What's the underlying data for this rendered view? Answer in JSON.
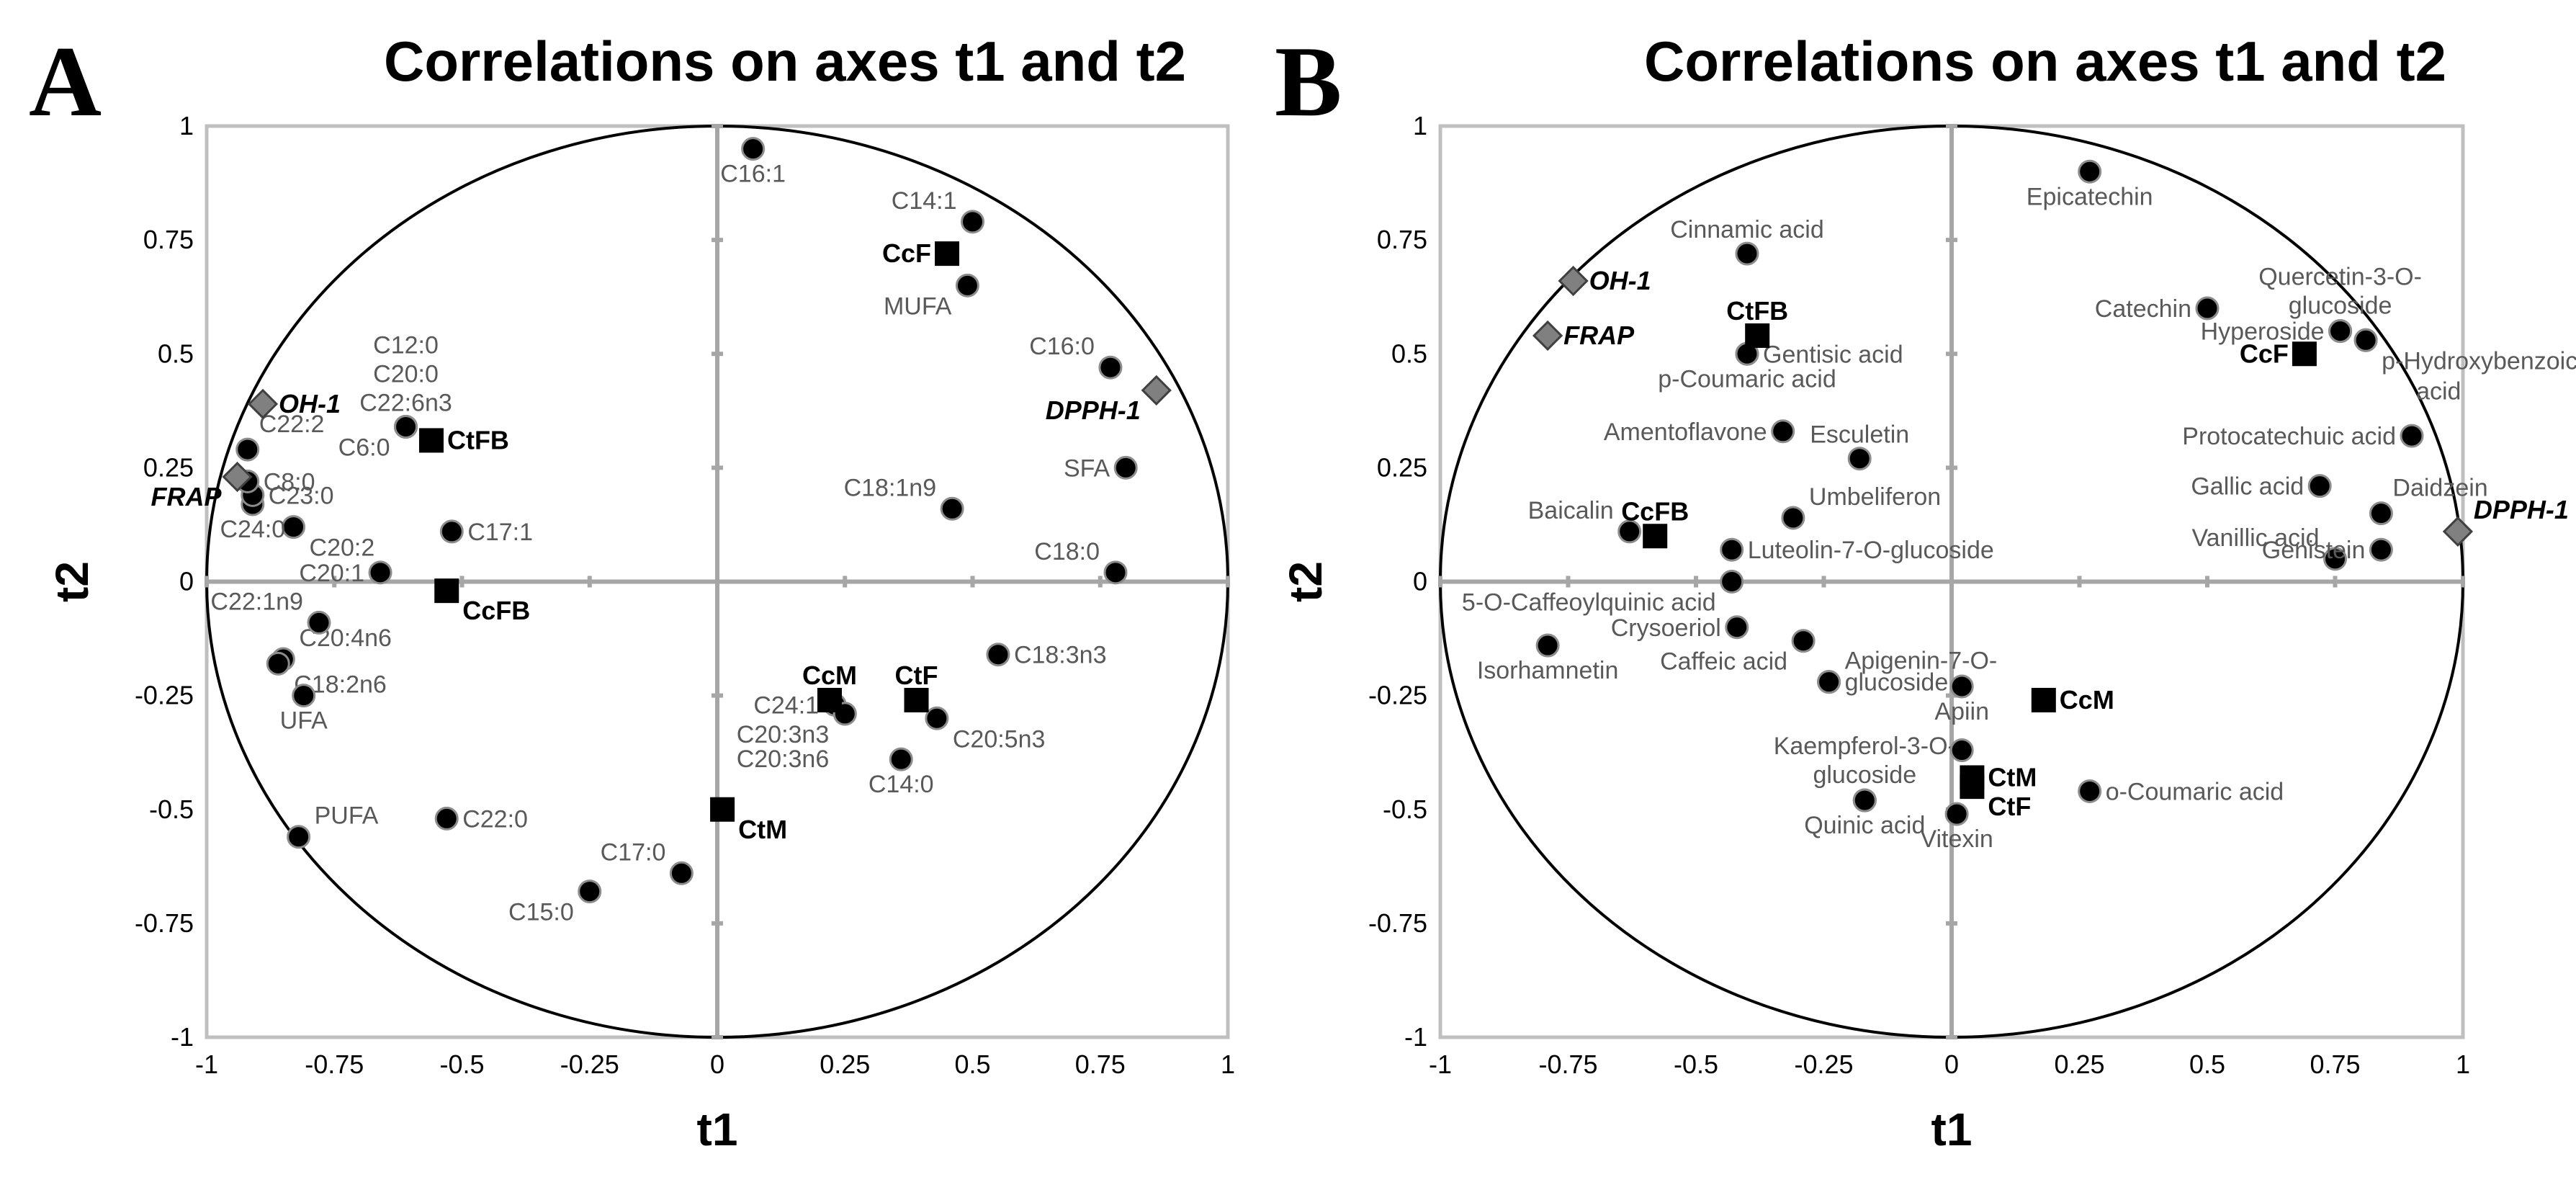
{
  "chart_data": [
    {
      "panel": "A",
      "type": "scatter",
      "title": "Correlations on axes t1 and t2",
      "xlabel": "t1",
      "ylabel": "t2",
      "xlim": [
        -1,
        1
      ],
      "ylim": [
        -1,
        1
      ],
      "xticks": [
        "-1",
        "-0.75",
        "-0.5",
        "-0.25",
        "0",
        "0.25",
        "0.5",
        "0.75",
        "1"
      ],
      "yticks": [
        "1",
        "0.75",
        "0.5",
        "0.25",
        "0",
        "-0.25",
        "-0.5",
        "-0.75",
        "-1"
      ],
      "correlation_circle": true,
      "series": [
        {
          "name": "variables",
          "marker": "circle",
          "points": [
            {
              "label": "C16:1",
              "x": 0.07,
              "y": 0.95,
              "anchor": "below"
            },
            {
              "label": "C14:1",
              "x": 0.5,
              "y": 0.79,
              "anchor": "upper-left"
            },
            {
              "label": "MUFA",
              "x": 0.49,
              "y": 0.65,
              "anchor": "lower-left"
            },
            {
              "label": "C16:0",
              "x": 0.77,
              "y": 0.47,
              "anchor": "upper-left"
            },
            {
              "label": "SFA",
              "x": 0.8,
              "y": 0.25,
              "anchor": "left"
            },
            {
              "label": "C18:1n9",
              "x": 0.46,
              "y": 0.16,
              "anchor": "upper-left"
            },
            {
              "label": "C18:0",
              "x": 0.78,
              "y": 0.02,
              "anchor": "upper-left"
            },
            {
              "label": "C18:3n3",
              "x": 0.55,
              "y": -0.16,
              "anchor": "right"
            },
            {
              "label": "C20:5n3",
              "x": 0.43,
              "y": -0.3,
              "anchor": "lower-right"
            },
            {
              "label": "C14:0",
              "x": 0.36,
              "y": -0.39,
              "anchor": "below"
            },
            {
              "label": "C24:1",
              "x": 0.23,
              "y": -0.27,
              "anchor": "left"
            },
            {
              "label": "C20:3n3",
              "x": 0.25,
              "y": -0.29,
              "anchor": "lower-left"
            },
            {
              "label": "C20:3n6",
              "x": 0.25,
              "y": -0.29,
              "anchor": "below-left"
            },
            {
              "label": "C17:0",
              "x": -0.07,
              "y": -0.64,
              "anchor": "upper-left"
            },
            {
              "label": "C15:0",
              "x": -0.25,
              "y": -0.68,
              "anchor": "lower-left"
            },
            {
              "label": "C22:0",
              "x": -0.53,
              "y": -0.52,
              "anchor": "right"
            },
            {
              "label": "PUFA",
              "x": -0.82,
              "y": -0.56,
              "anchor": "upper-right"
            },
            {
              "label": "C20:4n6",
              "x": -0.85,
              "y": -0.17,
              "anchor": "upper-right"
            },
            {
              "label": "C18:2n6",
              "x": -0.86,
              "y": -0.18,
              "anchor": "lower-right"
            },
            {
              "label": "UFA",
              "x": -0.81,
              "y": -0.25,
              "anchor": "below"
            },
            {
              "label": "C22:1n9",
              "x": -0.78,
              "y": -0.09,
              "anchor": "upper-left"
            },
            {
              "label": "C20:1",
              "x": -0.66,
              "y": 0.02,
              "anchor": "left"
            },
            {
              "label": "C20:2",
              "x": -0.83,
              "y": 0.12,
              "anchor": "lower-right"
            },
            {
              "label": "C17:1",
              "x": -0.52,
              "y": 0.11,
              "anchor": "right"
            },
            {
              "label": "C24:0",
              "x": -0.91,
              "y": 0.17,
              "anchor": "below"
            },
            {
              "label": "C23:0",
              "x": -0.91,
              "y": 0.19,
              "anchor": "right"
            },
            {
              "label": "C8:0",
              "x": -0.92,
              "y": 0.22,
              "anchor": "right"
            },
            {
              "label": "C22:2",
              "x": -0.92,
              "y": 0.29,
              "anchor": "above-right"
            },
            {
              "label": "C6:0",
              "x": -0.61,
              "y": 0.34,
              "anchor": "lower-left"
            },
            {
              "label": "C12:0",
              "x": -0.61,
              "y": 0.34,
              "anchor": "above-3"
            },
            {
              "label": "C20:0",
              "x": -0.61,
              "y": 0.34,
              "anchor": "above-2"
            },
            {
              "label": "C22:6n3",
              "x": -0.61,
              "y": 0.34,
              "anchor": "above-1"
            }
          ]
        },
        {
          "name": "observations",
          "marker": "square",
          "points": [
            {
              "label": "CcF",
              "x": 0.45,
              "y": 0.72,
              "anchor": "left"
            },
            {
              "label": "CtFB",
              "x": -0.56,
              "y": 0.31,
              "anchor": "right"
            },
            {
              "label": "CcFB",
              "x": -0.53,
              "y": -0.02,
              "anchor": "lower-right"
            },
            {
              "label": "CcM",
              "x": 0.22,
              "y": -0.26,
              "anchor": "above"
            },
            {
              "label": "CtF",
              "x": 0.39,
              "y": -0.26,
              "anchor": "above"
            },
            {
              "label": "CtM",
              "x": 0.01,
              "y": -0.5,
              "anchor": "lower-right"
            }
          ]
        },
        {
          "name": "supplementary",
          "marker": "diamond",
          "points": [
            {
              "label": "OH-1",
              "x": -0.89,
              "y": 0.39,
              "anchor": "right"
            },
            {
              "label": "FRAP",
              "x": -0.94,
              "y": 0.23,
              "anchor": "lower-left"
            },
            {
              "label": "DPPH-1",
              "x": 0.86,
              "y": 0.42,
              "anchor": "lower-left"
            }
          ]
        }
      ]
    },
    {
      "panel": "B",
      "type": "scatter",
      "title": "Correlations on axes t1 and t2",
      "xlabel": "t1",
      "ylabel": "t2",
      "xlim": [
        -1,
        1
      ],
      "ylim": [
        -1,
        1
      ],
      "xticks": [
        "-1",
        "-0.75",
        "-0.5",
        "-0.25",
        "0",
        "0.25",
        "0.5",
        "0.75",
        "1"
      ],
      "yticks": [
        "1",
        "0.75",
        "0.5",
        "0.25",
        "0",
        "-0.25",
        "-0.5",
        "-0.75",
        "-1"
      ],
      "correlation_circle": true,
      "series": [
        {
          "name": "variables",
          "marker": "circle",
          "points": [
            {
              "label": "Epicatechin",
              "x": 0.27,
              "y": 0.9,
              "anchor": "below"
            },
            {
              "label": "Cinnamic acid",
              "x": -0.4,
              "y": 0.72,
              "anchor": "above"
            },
            {
              "label": "Catechin",
              "x": 0.5,
              "y": 0.6,
              "anchor": "left"
            },
            {
              "label": "Quercetin-3-O-",
              "x": 0.76,
              "y": 0.55,
              "anchor": "up-2"
            },
            {
              "label": "glucoside",
              "x": 0.76,
              "y": 0.55,
              "anchor": "up-1"
            },
            {
              "label": "Hyperoside",
              "x": 0.76,
              "y": 0.55,
              "anchor": "left"
            },
            {
              "label": "p-Hydroxybenzoic",
              "x": 0.81,
              "y": 0.53,
              "anchor": "lower-right"
            },
            {
              "label": "acid",
              "x": 0.81,
              "y": 0.53,
              "anchor": "lower-right-2"
            },
            {
              "label": "Gentisic acid",
              "x": -0.4,
              "y": 0.5,
              "anchor": "right"
            },
            {
              "label": "p-Coumaric acid",
              "x": -0.4,
              "y": 0.5,
              "anchor": "below"
            },
            {
              "label": "Amentoflavone",
              "x": -0.33,
              "y": 0.33,
              "anchor": "left"
            },
            {
              "label": "Esculetin",
              "x": -0.18,
              "y": 0.27,
              "anchor": "above"
            },
            {
              "label": "Umbeliferon",
              "x": -0.31,
              "y": 0.14,
              "anchor": "upper-right"
            },
            {
              "label": "Protocatechuic acid",
              "x": 0.9,
              "y": 0.32,
              "anchor": "left"
            },
            {
              "label": "Gallic acid",
              "x": 0.72,
              "y": 0.21,
              "anchor": "left"
            },
            {
              "label": "Daidzein",
              "x": 0.84,
              "y": 0.15,
              "anchor": "above-right"
            },
            {
              "label": "Vanillic acid",
              "x": 0.75,
              "y": 0.05,
              "anchor": "upper-left"
            },
            {
              "label": "Genistein",
              "x": 0.84,
              "y": 0.07,
              "anchor": "left"
            },
            {
              "label": "Baicalin",
              "x": -0.63,
              "y": 0.11,
              "anchor": "upper-left"
            },
            {
              "label": "Luteolin-7-O-glucoside",
              "x": -0.43,
              "y": 0.07,
              "anchor": "right"
            },
            {
              "label": "5-O-Caffeoylquinic acid",
              "x": -0.43,
              "y": 0.0,
              "anchor": "lower-left"
            },
            {
              "label": "Crysoeriol",
              "x": -0.42,
              "y": -0.1,
              "anchor": "left"
            },
            {
              "label": "Isorhamnetin",
              "x": -0.79,
              "y": -0.14,
              "anchor": "below"
            },
            {
              "label": "Caffeic acid",
              "x": -0.29,
              "y": -0.13,
              "anchor": "lower-left"
            },
            {
              "label": "Apigenin-7-O-",
              "x": -0.24,
              "y": -0.22,
              "anchor": "upper-right"
            },
            {
              "label": "glucoside",
              "x": -0.24,
              "y": -0.22,
              "anchor": "right"
            },
            {
              "label": "Apiin",
              "x": 0.02,
              "y": -0.23,
              "anchor": "below"
            },
            {
              "label": "Kaempferol-3-O-",
              "x": -0.17,
              "y": -0.48,
              "anchor": "up-2"
            },
            {
              "label": "glucoside",
              "x": -0.17,
              "y": -0.48,
              "anchor": "up-1"
            },
            {
              "label": "Quinic acid",
              "x": -0.17,
              "y": -0.48,
              "anchor": "below"
            },
            {
              "label": "Vitexin",
              "x": 0.01,
              "y": -0.51,
              "anchor": "below"
            },
            {
              "label": "o-Coumaric acid",
              "x": 0.27,
              "y": -0.46,
              "anchor": "right"
            },
            {
              "label": "",
              "x": 0.02,
              "y": -0.37,
              "anchor": "none"
            }
          ]
        },
        {
          "name": "observations",
          "marker": "square",
          "points": [
            {
              "label": "CtFB",
              "x": -0.38,
              "y": 0.54,
              "anchor": "above"
            },
            {
              "label": "CcF",
              "x": 0.69,
              "y": 0.5,
              "anchor": "left"
            },
            {
              "label": "CcFB",
              "x": -0.58,
              "y": 0.1,
              "anchor": "above"
            },
            {
              "label": "CcM",
              "x": 0.18,
              "y": -0.26,
              "anchor": "right"
            },
            {
              "label": "CtM",
              "x": 0.04,
              "y": -0.43,
              "anchor": "right"
            },
            {
              "label": "CtF",
              "x": 0.04,
              "y": -0.45,
              "anchor": "lower-right"
            }
          ]
        },
        {
          "name": "supplementary",
          "marker": "diamond",
          "points": [
            {
              "label": "OH-1",
              "x": -0.74,
              "y": 0.66,
              "anchor": "right"
            },
            {
              "label": "FRAP",
              "x": -0.79,
              "y": 0.54,
              "anchor": "right"
            },
            {
              "label": "DPPH-1",
              "x": 0.99,
              "y": 0.11,
              "anchor": "upper-right"
            }
          ]
        }
      ]
    }
  ]
}
